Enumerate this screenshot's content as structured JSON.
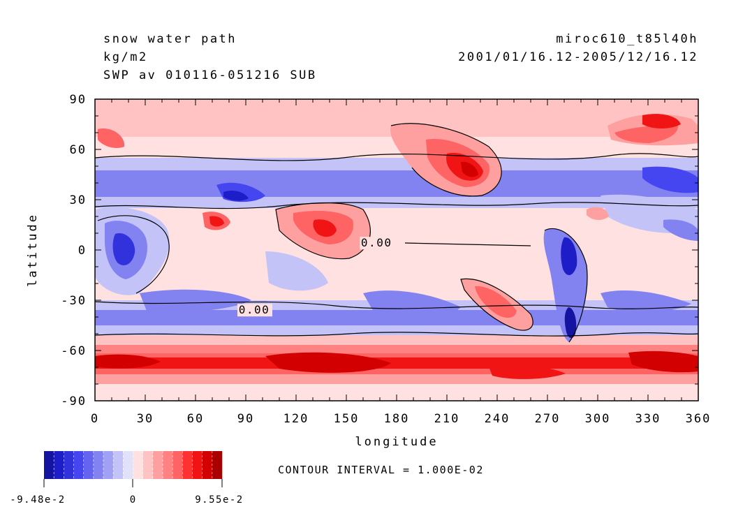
{
  "header": {
    "variable": "snow water path",
    "units": "kg/m2",
    "subtitle": "SWP av 010116-051216 SUB",
    "model": "miroc610_t85l40h",
    "period": "2001/01/16.12-2005/12/16.12"
  },
  "chart_data": {
    "type": "heatmap",
    "xlabel": "longitude",
    "ylabel": "latitude",
    "xlim": [
      0,
      360
    ],
    "ylim": [
      -90,
      90
    ],
    "x_ticks": [
      "0",
      "30",
      "60",
      "90",
      "120",
      "150",
      "180",
      "210",
      "240",
      "270",
      "300",
      "330",
      "360"
    ],
    "y_ticks": [
      "90",
      "60",
      "30",
      "0",
      "-30",
      "-60",
      "-90"
    ],
    "contour_labels": [
      "0.00",
      "0.00"
    ],
    "contour_interval": "CONTOUR INTERVAL = 1.000E-02",
    "colorbar": {
      "min_label": "-9.48e-2",
      "zero_label": "0",
      "max_label": "9.55e-2",
      "colors": [
        "#1414a0",
        "#1e1ec8",
        "#3232dc",
        "#4646f0",
        "#6464f0",
        "#8282f0",
        "#a0a0f5",
        "#c3c3f8",
        "#e1e1fa",
        "#ffe1e1",
        "#ffc3c3",
        "#ffa0a0",
        "#ff8282",
        "#ff6464",
        "#ff3232",
        "#f01414",
        "#d20000",
        "#aa0000"
      ]
    },
    "field_features": [
      {
        "lon": 20,
        "lat": 65,
        "value": 0.04
      },
      {
        "lon": 75,
        "lat": 15,
        "value": 0.05
      },
      {
        "lon": 140,
        "lat": 15,
        "value": 0.05
      },
      {
        "lon": 228,
        "lat": 45,
        "value": 0.08
      },
      {
        "lon": 240,
        "lat": -30,
        "value": 0.06
      },
      {
        "lon": 320,
        "lat": 65,
        "value": 0.05
      },
      {
        "lon": 20,
        "lat": 0,
        "value": -0.06
      },
      {
        "lon": 280,
        "lat": 5,
        "value": -0.07
      },
      {
        "lon": 285,
        "lat": -45,
        "value": -0.08
      },
      {
        "lon": 60,
        "lat": -40,
        "value": -0.04
      },
      {
        "lon": 100,
        "lat": 45,
        "value": -0.05
      },
      {
        "lon": 335,
        "lat": 42,
        "value": -0.04
      }
    ]
  }
}
